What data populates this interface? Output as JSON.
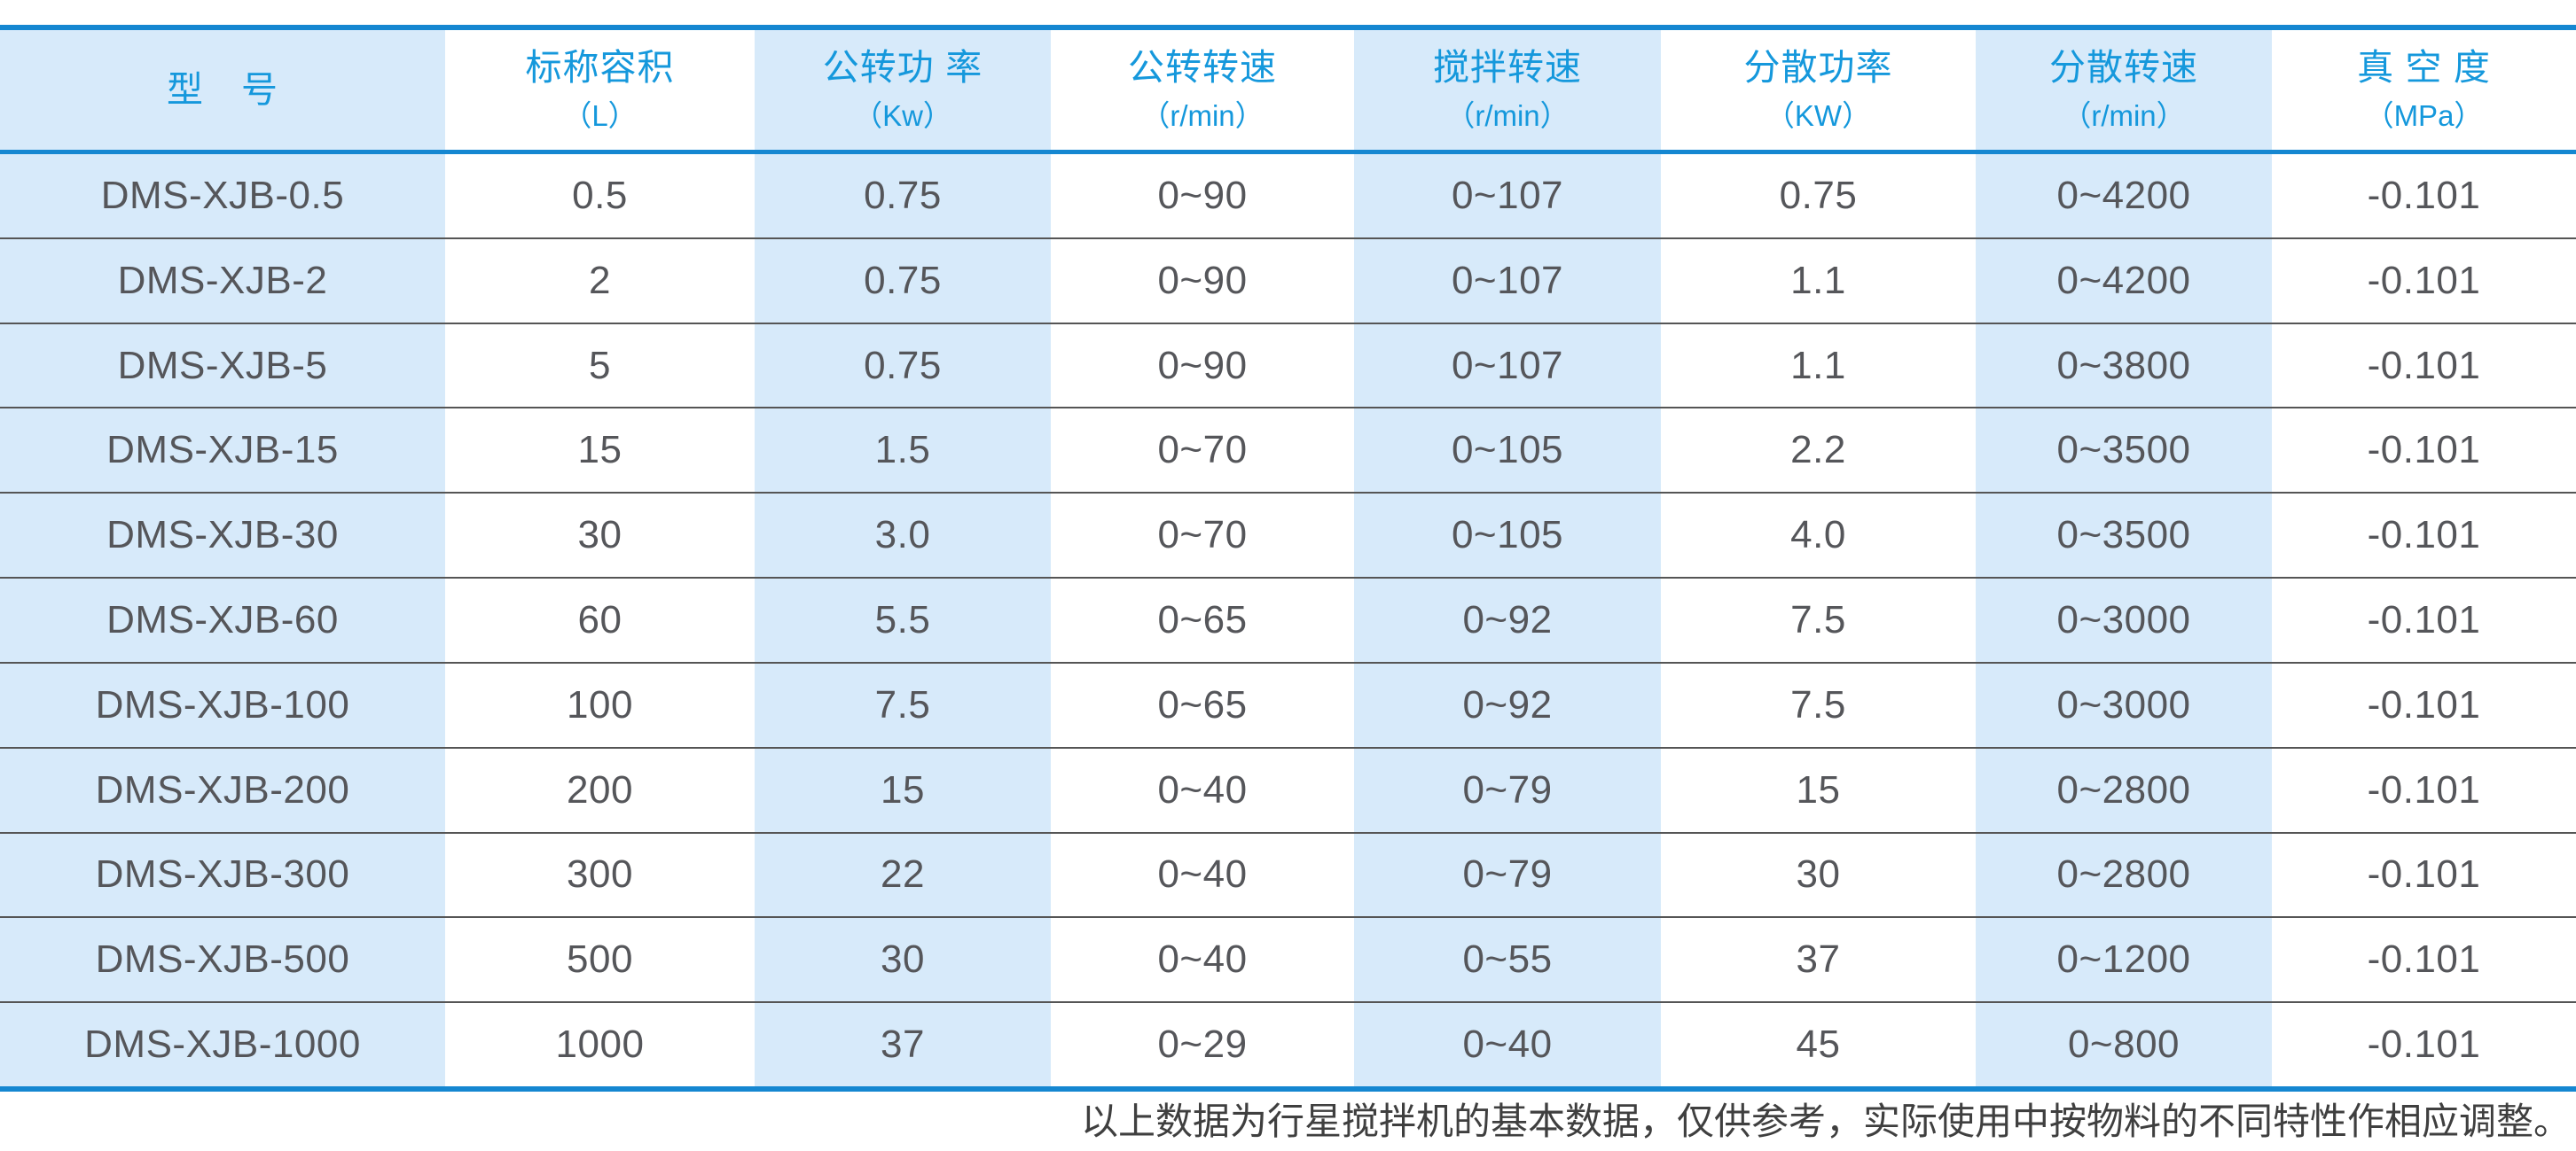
{
  "colors": {
    "accent_blue": "#1587d1",
    "header_text_blue": "#1598dc",
    "stripe_light_blue": "#d7eafa",
    "data_text_gray": "#55565a",
    "row_divider_gray": "#555555"
  },
  "table": {
    "columns": [
      {
        "title": "型　号",
        "unit": ""
      },
      {
        "title": "标称容积",
        "unit": "（L）"
      },
      {
        "title": "公转功 率",
        "unit": "（Kw）"
      },
      {
        "title": "公转转速",
        "unit": "（r/min）"
      },
      {
        "title": "搅拌转速",
        "unit": "（r/min）"
      },
      {
        "title": "分散功率",
        "unit": "（KW）"
      },
      {
        "title": "分散转速",
        "unit": "（r/min）"
      },
      {
        "title": "真 空 度",
        "unit": "（MPa）"
      }
    ],
    "rows": [
      [
        "DMS-XJB-0.5",
        "0.5",
        "0.75",
        "0~90",
        "0~107",
        "0.75",
        "0~4200",
        "-0.101"
      ],
      [
        "DMS-XJB-2",
        "2",
        "0.75",
        "0~90",
        "0~107",
        "1.1",
        "0~4200",
        "-0.101"
      ],
      [
        "DMS-XJB-5",
        "5",
        "0.75",
        "0~90",
        "0~107",
        "1.1",
        "0~3800",
        "-0.101"
      ],
      [
        "DMS-XJB-15",
        "15",
        "1.5",
        "0~70",
        "0~105",
        "2.2",
        "0~3500",
        "-0.101"
      ],
      [
        "DMS-XJB-30",
        "30",
        "3.0",
        "0~70",
        "0~105",
        "4.0",
        "0~3500",
        "-0.101"
      ],
      [
        "DMS-XJB-60",
        "60",
        "5.5",
        "0~65",
        "0~92",
        "7.5",
        "0~3000",
        "-0.101"
      ],
      [
        "DMS-XJB-100",
        "100",
        "7.5",
        "0~65",
        "0~92",
        "7.5",
        "0~3000",
        "-0.101"
      ],
      [
        "DMS-XJB-200",
        "200",
        "15",
        "0~40",
        "0~79",
        "15",
        "0~2800",
        "-0.101"
      ],
      [
        "DMS-XJB-300",
        "300",
        "22",
        "0~40",
        "0~79",
        "30",
        "0~2800",
        "-0.101"
      ],
      [
        "DMS-XJB-500",
        "500",
        "30",
        "0~40",
        "0~55",
        "37",
        "0~1200",
        "-0.101"
      ],
      [
        "DMS-XJB-1000",
        "1000",
        "37",
        "0~29",
        "0~40",
        "45",
        "0~800",
        "-0.101"
      ]
    ]
  },
  "footnote": "以上数据为行星搅拌机的基本数据，仅供参考，实际使用中按物料的不同特性作相应调整。"
}
